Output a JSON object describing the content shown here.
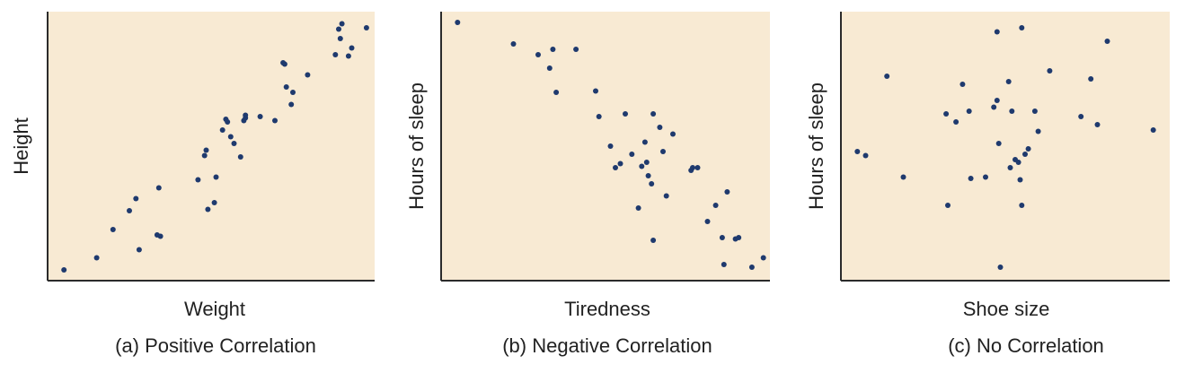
{
  "colors": {
    "plot_background": "#f8ead3",
    "axis": "#2b2b2b",
    "point": "#1f3a6e",
    "text": "#222222"
  },
  "chart_data": [
    {
      "type": "scatter",
      "title": "",
      "caption": "(a) Positive Correlation",
      "xlabel": "Weight",
      "ylabel": "Height",
      "xlim": [
        0,
        100
      ],
      "ylim": [
        0,
        100
      ],
      "ticks": false,
      "grid": false,
      "points": [
        [
          5,
          4
        ],
        [
          15,
          8.5
        ],
        [
          20,
          19
        ],
        [
          25,
          26
        ],
        [
          27,
          30.5
        ],
        [
          28,
          11.5
        ],
        [
          33.5,
          17
        ],
        [
          34.5,
          16.5
        ],
        [
          34,
          34.5
        ],
        [
          46,
          37.5
        ],
        [
          48,
          46.5
        ],
        [
          48.5,
          48.5
        ],
        [
          49,
          26.5
        ],
        [
          51,
          29
        ],
        [
          51.5,
          38.5
        ],
        [
          53.5,
          56
        ],
        [
          54.5,
          60
        ],
        [
          55,
          59
        ],
        [
          56,
          53.5
        ],
        [
          57,
          51
        ],
        [
          59,
          46
        ],
        [
          60,
          59.5
        ],
        [
          60.5,
          60.5
        ],
        [
          60.5,
          61.5
        ],
        [
          65,
          61
        ],
        [
          69.5,
          59.5
        ],
        [
          72,
          81
        ],
        [
          72.5,
          80.5
        ],
        [
          73,
          72
        ],
        [
          74.5,
          65.5
        ],
        [
          75,
          70
        ],
        [
          79.5,
          76.5
        ],
        [
          88,
          84
        ],
        [
          89,
          93.5
        ],
        [
          89.5,
          90
        ],
        [
          90,
          95.5
        ],
        [
          92,
          83.5
        ],
        [
          93,
          86.5
        ],
        [
          97.5,
          94
        ]
      ]
    },
    {
      "type": "scatter",
      "title": "",
      "caption": "(b) Negative Correlation",
      "xlabel": "Tiredness",
      "ylabel": "Hours of sleep",
      "xlim": [
        0,
        100
      ],
      "ylim": [
        0,
        100
      ],
      "ticks": false,
      "grid": false,
      "points": [
        [
          5,
          96
        ],
        [
          22,
          88
        ],
        [
          29.5,
          84
        ],
        [
          33,
          79
        ],
        [
          34,
          86
        ],
        [
          35,
          70
        ],
        [
          41,
          86
        ],
        [
          47,
          70.5
        ],
        [
          48,
          61
        ],
        [
          51.5,
          50
        ],
        [
          53,
          42
        ],
        [
          54.5,
          43.5
        ],
        [
          56,
          62
        ],
        [
          58,
          47
        ],
        [
          60,
          27
        ],
        [
          61,
          42.5
        ],
        [
          62,
          51.5
        ],
        [
          62.5,
          44
        ],
        [
          63,
          39
        ],
        [
          64,
          36
        ],
        [
          64.5,
          15
        ],
        [
          64.5,
          62
        ],
        [
          66.5,
          57
        ],
        [
          67.5,
          48
        ],
        [
          68.5,
          31.5
        ],
        [
          70.5,
          54.5
        ],
        [
          76,
          41
        ],
        [
          76.5,
          42
        ],
        [
          78,
          42
        ],
        [
          81,
          22
        ],
        [
          83.5,
          28
        ],
        [
          85.5,
          16
        ],
        [
          86,
          6
        ],
        [
          87,
          33
        ],
        [
          89.5,
          15.5
        ],
        [
          90.5,
          16
        ],
        [
          94.5,
          5
        ],
        [
          98,
          8.5
        ]
      ]
    },
    {
      "type": "scatter",
      "title": "",
      "caption": "(c) No Correlation",
      "xlabel": "Shoe size",
      "ylabel": "Hours of sleep",
      "xlim": [
        0,
        100
      ],
      "ylim": [
        0,
        100
      ],
      "ticks": false,
      "grid": false,
      "points": [
        [
          5,
          48
        ],
        [
          7.5,
          46.5
        ],
        [
          14,
          76
        ],
        [
          19,
          38.5
        ],
        [
          32,
          62
        ],
        [
          32.5,
          28
        ],
        [
          35,
          59
        ],
        [
          37,
          73
        ],
        [
          39,
          63
        ],
        [
          39.5,
          38
        ],
        [
          44,
          38.5
        ],
        [
          46.5,
          64.5
        ],
        [
          47.5,
          67
        ],
        [
          47.5,
          92.5
        ],
        [
          48,
          51
        ],
        [
          48.5,
          5
        ],
        [
          51,
          74
        ],
        [
          51.5,
          42
        ],
        [
          52,
          63
        ],
        [
          53,
          45
        ],
        [
          54,
          44
        ],
        [
          54.5,
          37.5
        ],
        [
          55,
          28
        ],
        [
          55,
          94
        ],
        [
          56,
          47
        ],
        [
          57,
          49
        ],
        [
          59,
          63
        ],
        [
          60,
          55.5
        ],
        [
          63.5,
          78
        ],
        [
          73,
          61
        ],
        [
          76,
          75
        ],
        [
          78,
          58
        ],
        [
          81,
          89
        ],
        [
          95,
          56
        ]
      ]
    }
  ]
}
